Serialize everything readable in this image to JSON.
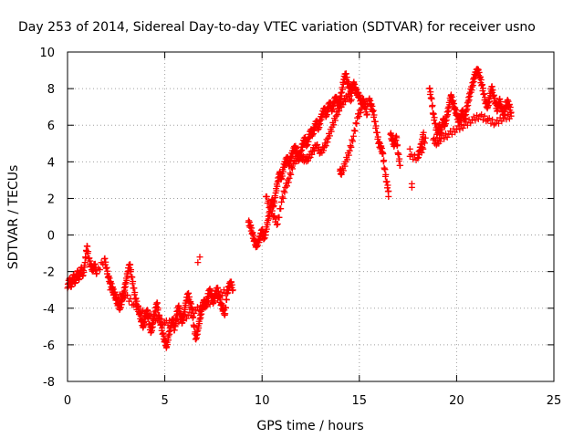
{
  "chart_data": {
    "type": "scatter",
    "title": "Day 253 of 2014, Sidereal Day-to-day VTEC variation (SDTVAR) for receiver usno",
    "xlabel": "GPS time / hours",
    "ylabel": "SDTVAR / TECUs",
    "xlim": [
      0,
      25
    ],
    "ylim": [
      -8,
      10
    ],
    "xticks": [
      0,
      5,
      10,
      15,
      20,
      25
    ],
    "yticks": [
      -8,
      -6,
      -4,
      -2,
      0,
      2,
      4,
      6,
      8,
      10
    ],
    "grid": true,
    "marker": "+",
    "series": [
      {
        "name": "SDTVAR",
        "color": "#ff0000",
        "points": [
          [
            0.0,
            -2.9
          ],
          [
            0.1,
            -2.4
          ],
          [
            0.2,
            -2.8
          ],
          [
            0.3,
            -2.2
          ],
          [
            0.4,
            -2.6
          ],
          [
            0.5,
            -2.0
          ],
          [
            0.6,
            -2.4
          ],
          [
            0.7,
            -1.8
          ],
          [
            0.8,
            -2.2
          ],
          [
            0.9,
            -1.5
          ],
          [
            1.0,
            -0.6
          ],
          [
            1.1,
            -1.3
          ],
          [
            1.2,
            -1.7
          ],
          [
            1.3,
            -1.9
          ],
          [
            1.4,
            -1.6
          ],
          [
            1.5,
            -2.1
          ],
          [
            1.9,
            -1.3
          ],
          [
            2.0,
            -1.8
          ],
          [
            2.1,
            -2.3
          ],
          [
            2.2,
            -2.6
          ],
          [
            2.3,
            -2.9
          ],
          [
            2.4,
            -3.2
          ],
          [
            2.5,
            -3.5
          ],
          [
            2.6,
            -3.8
          ],
          [
            2.7,
            -4.0
          ],
          [
            2.8,
            -3.6
          ],
          [
            2.9,
            -3.1
          ],
          [
            3.0,
            -2.6
          ],
          [
            3.1,
            -2.0
          ],
          [
            3.2,
            -1.6
          ],
          [
            3.3,
            -2.3
          ],
          [
            3.4,
            -2.9
          ],
          [
            3.5,
            -3.5
          ],
          [
            3.6,
            -3.9
          ],
          [
            3.7,
            -4.3
          ],
          [
            3.8,
            -4.7
          ],
          [
            3.9,
            -5.0
          ],
          [
            4.0,
            -4.5
          ],
          [
            4.1,
            -4.1
          ],
          [
            4.2,
            -4.9
          ],
          [
            4.3,
            -5.3
          ],
          [
            4.4,
            -4.8
          ],
          [
            4.5,
            -4.2
          ],
          [
            4.6,
            -3.7
          ],
          [
            4.7,
            -4.4
          ],
          [
            4.8,
            -4.9
          ],
          [
            4.9,
            -5.4
          ],
          [
            5.0,
            -5.8
          ],
          [
            5.1,
            -6.1
          ],
          [
            5.2,
            -5.5
          ],
          [
            5.3,
            -5.0
          ],
          [
            5.4,
            -4.6
          ],
          [
            5.5,
            -5.2
          ],
          [
            5.6,
            -4.4
          ],
          [
            5.7,
            -3.9
          ],
          [
            5.8,
            -4.3
          ],
          [
            5.9,
            -4.8
          ],
          [
            6.0,
            -4.2
          ],
          [
            6.1,
            -3.6
          ],
          [
            6.2,
            -3.2
          ],
          [
            6.3,
            -3.7
          ],
          [
            6.4,
            -4.0
          ],
          [
            6.5,
            -5.0
          ],
          [
            6.6,
            -5.7
          ],
          [
            6.7,
            -5.2
          ],
          [
            6.8,
            -4.6
          ],
          [
            6.9,
            -4.1
          ],
          [
            7.0,
            -3.6
          ],
          [
            7.1,
            -3.9
          ],
          [
            7.2,
            -3.4
          ],
          [
            7.3,
            -3.0
          ],
          [
            7.4,
            -3.3
          ],
          [
            7.5,
            -3.7
          ],
          [
            7.6,
            -3.2
          ],
          [
            7.7,
            -2.9
          ],
          [
            7.8,
            -3.4
          ],
          [
            7.9,
            -3.8
          ],
          [
            8.0,
            -4.1
          ],
          [
            8.1,
            -4.3
          ],
          [
            8.2,
            -3.2
          ],
          [
            8.3,
            -2.8
          ],
          [
            8.4,
            -2.6
          ],
          [
            8.5,
            -3.0
          ],
          [
            2.2,
            -3.0
          ],
          [
            2.6,
            -3.4
          ],
          [
            3.0,
            -3.3
          ],
          [
            3.4,
            -3.8
          ],
          [
            3.8,
            -4.2
          ],
          [
            4.2,
            -4.4
          ],
          [
            4.6,
            -4.6
          ],
          [
            5.0,
            -4.8
          ],
          [
            5.4,
            -4.8
          ],
          [
            5.8,
            -4.6
          ],
          [
            6.2,
            -4.4
          ],
          [
            6.6,
            -4.1
          ],
          [
            7.0,
            -3.9
          ],
          [
            7.4,
            -3.6
          ],
          [
            7.8,
            -3.3
          ],
          [
            8.2,
            -3.0
          ],
          [
            6.8,
            -1.2
          ],
          [
            6.7,
            -1.5
          ],
          [
            9.3,
            0.7
          ],
          [
            9.4,
            0.5
          ],
          [
            9.5,
            0.1
          ],
          [
            9.6,
            -0.3
          ],
          [
            9.7,
            -0.6
          ],
          [
            9.8,
            -0.4
          ],
          [
            9.9,
            -0.1
          ],
          [
            10.0,
            0.3
          ],
          [
            10.1,
            -0.2
          ],
          [
            10.2,
            0.2
          ],
          [
            10.3,
            0.8
          ],
          [
            10.4,
            1.3
          ],
          [
            10.5,
            1.9
          ],
          [
            10.6,
            1.6
          ],
          [
            10.7,
            2.3
          ],
          [
            10.8,
            2.9
          ],
          [
            10.9,
            3.4
          ],
          [
            11.0,
            3.1
          ],
          [
            11.1,
            3.7
          ],
          [
            11.2,
            4.0
          ],
          [
            11.3,
            4.2
          ],
          [
            11.4,
            3.8
          ],
          [
            11.5,
            4.3
          ],
          [
            11.6,
            4.6
          ],
          [
            11.7,
            4.8
          ],
          [
            11.8,
            4.5
          ],
          [
            11.9,
            4.1
          ],
          [
            12.0,
            4.6
          ],
          [
            12.1,
            5.0
          ],
          [
            12.2,
            5.3
          ],
          [
            12.3,
            4.9
          ],
          [
            12.4,
            5.3
          ],
          [
            12.5,
            5.7
          ],
          [
            12.6,
            5.5
          ],
          [
            12.7,
            5.9
          ],
          [
            12.8,
            6.2
          ],
          [
            12.9,
            5.8
          ],
          [
            13.0,
            6.3
          ],
          [
            13.1,
            6.6
          ],
          [
            13.2,
            6.9
          ],
          [
            13.3,
            6.5
          ],
          [
            13.4,
            7.0
          ],
          [
            13.5,
            7.2
          ],
          [
            13.6,
            6.8
          ],
          [
            13.7,
            7.3
          ],
          [
            13.8,
            7.5
          ],
          [
            13.9,
            7.1
          ],
          [
            14.0,
            7.4
          ],
          [
            14.1,
            7.8
          ],
          [
            14.2,
            8.5
          ],
          [
            14.3,
            8.8
          ],
          [
            14.4,
            8.3
          ],
          [
            14.5,
            8.1
          ],
          [
            14.6,
            7.8
          ],
          [
            14.7,
            8.3
          ],
          [
            14.8,
            8.0
          ],
          [
            14.9,
            7.7
          ],
          [
            15.0,
            7.6
          ],
          [
            15.1,
            7.2
          ],
          [
            15.2,
            7.4
          ],
          [
            15.3,
            7.0
          ],
          [
            15.4,
            6.6
          ],
          [
            10.2,
            2.1
          ],
          [
            10.4,
            1.5
          ],
          [
            10.6,
            1.0
          ],
          [
            10.8,
            0.6
          ],
          [
            11.0,
            1.8
          ],
          [
            11.2,
            2.6
          ],
          [
            11.4,
            3.1
          ],
          [
            11.6,
            3.9
          ],
          [
            11.8,
            4.2
          ],
          [
            12.0,
            4.3
          ],
          [
            12.2,
            4.1
          ],
          [
            12.4,
            4.2
          ],
          [
            12.6,
            4.6
          ],
          [
            12.8,
            4.9
          ],
          [
            13.0,
            4.5
          ],
          [
            13.2,
            4.8
          ],
          [
            13.4,
            5.3
          ],
          [
            13.6,
            5.9
          ],
          [
            13.8,
            6.5
          ],
          [
            14.0,
            7.0
          ],
          [
            14.2,
            7.3
          ],
          [
            14.4,
            7.6
          ],
          [
            14.6,
            7.4
          ],
          [
            14.0,
            3.5
          ],
          [
            14.1,
            3.4
          ],
          [
            14.3,
            4.0
          ],
          [
            14.5,
            4.6
          ],
          [
            14.7,
            5.4
          ],
          [
            14.9,
            6.4
          ],
          [
            15.1,
            6.9
          ],
          [
            15.5,
            7.4
          ],
          [
            15.6,
            7.1
          ],
          [
            15.7,
            6.8
          ],
          [
            15.8,
            6.2
          ],
          [
            15.9,
            5.6
          ],
          [
            16.0,
            5.0
          ],
          [
            16.1,
            4.8
          ],
          [
            16.2,
            4.5
          ],
          [
            16.3,
            3.6
          ],
          [
            16.4,
            2.9
          ],
          [
            16.5,
            2.4
          ],
          [
            16.5,
            2.1
          ],
          [
            16.6,
            5.5
          ],
          [
            16.7,
            5.2
          ],
          [
            16.8,
            4.9
          ],
          [
            16.9,
            5.4
          ],
          [
            17.0,
            4.4
          ],
          [
            17.1,
            3.8
          ],
          [
            17.7,
            2.8
          ],
          [
            17.7,
            2.6
          ],
          [
            17.6,
            4.7
          ],
          [
            17.6,
            4.3
          ],
          [
            18.0,
            4.2
          ],
          [
            18.1,
            4.6
          ],
          [
            18.2,
            5.0
          ],
          [
            18.3,
            5.6
          ],
          [
            18.2,
            4.5
          ],
          [
            18.4,
            5.3
          ],
          [
            18.6,
            8.0
          ],
          [
            18.7,
            7.5
          ],
          [
            18.8,
            6.6
          ],
          [
            18.9,
            6.1
          ],
          [
            19.0,
            5.5
          ],
          [
            19.1,
            6.0
          ],
          [
            19.2,
            5.6
          ],
          [
            19.3,
            6.3
          ],
          [
            19.4,
            6.0
          ],
          [
            19.5,
            6.5
          ],
          [
            19.6,
            7.0
          ],
          [
            19.7,
            7.6
          ],
          [
            19.8,
            7.3
          ],
          [
            19.9,
            6.9
          ],
          [
            20.0,
            6.6
          ],
          [
            20.1,
            6.2
          ],
          [
            20.2,
            6.4
          ],
          [
            20.3,
            6.8
          ],
          [
            20.4,
            6.3
          ],
          [
            20.5,
            6.8
          ],
          [
            20.6,
            7.3
          ],
          [
            20.7,
            7.8
          ],
          [
            20.8,
            8.1
          ],
          [
            20.9,
            8.6
          ],
          [
            21.0,
            8.9
          ],
          [
            21.1,
            9.0
          ],
          [
            21.2,
            8.6
          ],
          [
            21.3,
            8.2
          ],
          [
            21.4,
            7.7
          ],
          [
            21.5,
            7.2
          ],
          [
            21.6,
            7.0
          ],
          [
            21.7,
            7.5
          ],
          [
            21.8,
            8.1
          ],
          [
            21.9,
            7.6
          ],
          [
            22.0,
            7.2
          ],
          [
            22.1,
            6.8
          ],
          [
            22.2,
            7.4
          ],
          [
            22.3,
            7.0
          ],
          [
            22.4,
            6.6
          ],
          [
            22.5,
            6.9
          ],
          [
            22.6,
            7.3
          ],
          [
            22.7,
            7.1
          ],
          [
            22.8,
            6.7
          ],
          [
            18.8,
            5.2
          ],
          [
            19.0,
            5.0
          ],
          [
            19.2,
            5.3
          ],
          [
            19.6,
            5.5
          ],
          [
            20.0,
            5.8
          ],
          [
            20.4,
            6.0
          ],
          [
            20.8,
            6.3
          ],
          [
            21.2,
            6.5
          ],
          [
            21.6,
            6.3
          ],
          [
            22.0,
            6.1
          ],
          [
            22.4,
            6.4
          ],
          [
            22.8,
            6.5
          ]
        ]
      }
    ]
  }
}
